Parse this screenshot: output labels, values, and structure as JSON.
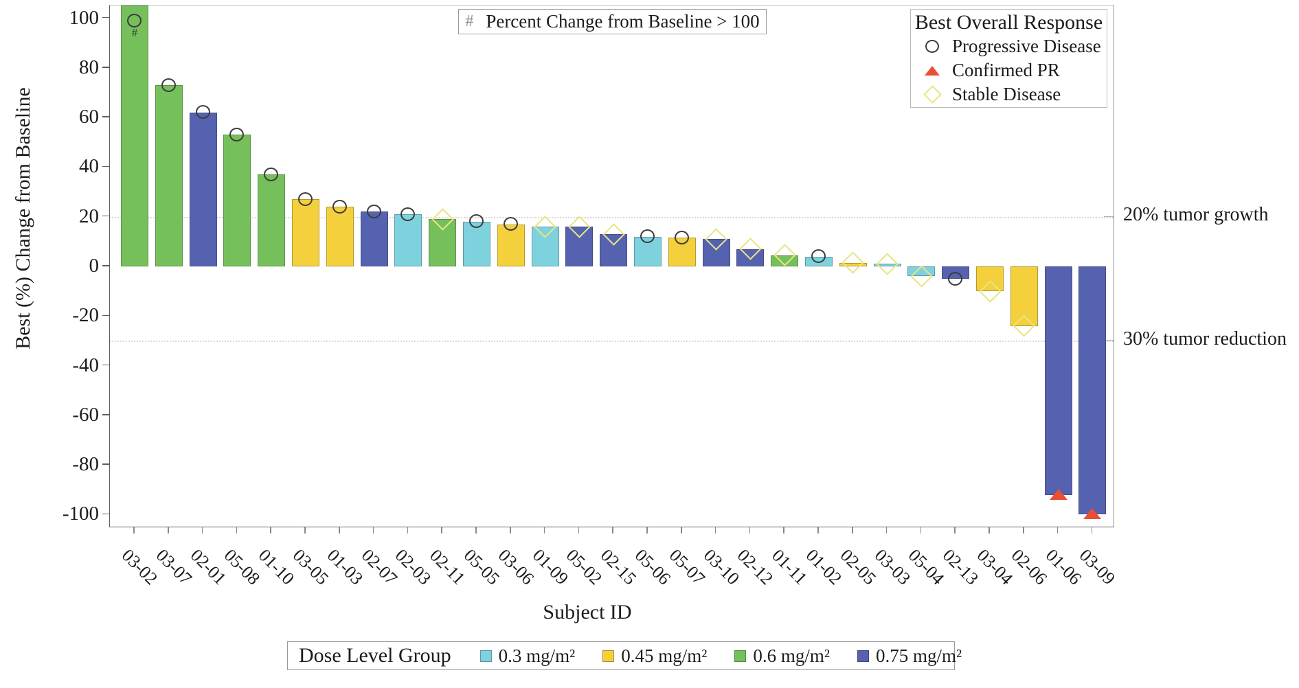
{
  "figure": {
    "note": {
      "symbol": "#",
      "text": "Percent Change from Baseline > 100"
    },
    "response_legend": {
      "title": "Best Overall Response",
      "items": [
        {
          "key": "PD",
          "label": "Progressive Disease",
          "marker": "circle"
        },
        {
          "key": "PR",
          "label": "Confirmed PR",
          "marker": "triangle"
        },
        {
          "key": "SD",
          "label": "Stable Disease",
          "marker": "diamond"
        }
      ]
    },
    "dose_legend": {
      "title": "Dose Level Group",
      "items": [
        {
          "label": "0.3 mg/m²",
          "color": "#7ed2dd"
        },
        {
          "label": "0.45 mg/m²",
          "color": "#f4d03c"
        },
        {
          "label": "0.6 mg/m²",
          "color": "#76c05c"
        },
        {
          "label": "0.75 mg/m²",
          "color": "#5562b0"
        }
      ]
    },
    "annotations": [
      {
        "text": "20% tumor growth",
        "value": 20
      },
      {
        "text": "30% tumor reduction",
        "value": -30
      }
    ]
  },
  "colors": {
    "circle_stroke": "#3d3d3d",
    "diamond_stroke": "#e9e484",
    "triangle_fill": "#e84f33",
    "axis": "#5e5e5e",
    "reference_line": "#e2d4d4"
  },
  "chart_data": {
    "type": "bar",
    "title": "",
    "xlabel": "Subject ID",
    "ylabel": "Best (%) Change from Baseline",
    "ylim": [
      -105,
      105
    ],
    "yticks": [
      100,
      80,
      60,
      40,
      20,
      0,
      -20,
      -40,
      -60,
      -80,
      -100
    ],
    "reference_lines": [
      20,
      -30
    ],
    "legend_position": "top-right",
    "grid": "reference-lines-only",
    "bars": [
      {
        "subject": "03-02",
        "value": 105,
        "clipped": true,
        "display": ">100",
        "marker_value": 99,
        "hash": true,
        "dose": "0.6 mg/m²",
        "response": "PD"
      },
      {
        "subject": "03-07",
        "value": 73,
        "dose": "0.6 mg/m²",
        "response": "PD"
      },
      {
        "subject": "02-01",
        "value": 62,
        "dose": "0.75 mg/m²",
        "response": "PD"
      },
      {
        "subject": "05-08",
        "value": 53,
        "dose": "0.6 mg/m²",
        "response": "PD"
      },
      {
        "subject": "01-10",
        "value": 37,
        "dose": "0.6 mg/m²",
        "response": "PD"
      },
      {
        "subject": "03-05",
        "value": 27,
        "dose": "0.45 mg/m²",
        "response": "PD"
      },
      {
        "subject": "01-03",
        "value": 24,
        "dose": "0.45 mg/m²",
        "response": "PD"
      },
      {
        "subject": "02-07",
        "value": 22,
        "dose": "0.75 mg/m²",
        "response": "PD"
      },
      {
        "subject": "02-03",
        "value": 21,
        "dose": "0.3 mg/m²",
        "response": "PD"
      },
      {
        "subject": "02-11",
        "value": 19,
        "dose": "0.6 mg/m²",
        "response": "SD"
      },
      {
        "subject": "05-05",
        "value": 18,
        "dose": "0.3 mg/m²",
        "response": "PD"
      },
      {
        "subject": "03-06",
        "value": 17,
        "dose": "0.45 mg/m²",
        "response": "PD"
      },
      {
        "subject": "01-09",
        "value": 16,
        "dose": "0.3 mg/m²",
        "response": "SD"
      },
      {
        "subject": "05-02",
        "value": 16,
        "dose": "0.75 mg/m²",
        "response": "SD"
      },
      {
        "subject": "02-15",
        "value": 13,
        "dose": "0.75 mg/m²",
        "response": "SD"
      },
      {
        "subject": "05-06",
        "value": 12,
        "dose": "0.3 mg/m²",
        "response": "PD"
      },
      {
        "subject": "05-07",
        "value": 11.5,
        "dose": "0.45 mg/m²",
        "response": "PD"
      },
      {
        "subject": "03-10",
        "value": 11,
        "dose": "0.75 mg/m²",
        "response": "SD"
      },
      {
        "subject": "02-12",
        "value": 7,
        "dose": "0.75 mg/m²",
        "response": "SD"
      },
      {
        "subject": "01-11",
        "value": 4.5,
        "dose": "0.6 mg/m²",
        "response": "SD"
      },
      {
        "subject": "01-02",
        "value": 4,
        "dose": "0.3 mg/m²",
        "response": "PD"
      },
      {
        "subject": "02-05",
        "value": 1.5,
        "dose": "0.45 mg/m²",
        "response": "SD"
      },
      {
        "subject": "03-03",
        "value": 1,
        "dose": "0.3 mg/m²",
        "response": "SD"
      },
      {
        "subject": "05-04",
        "value": -4,
        "dose": "0.3 mg/m²",
        "response": "SD"
      },
      {
        "subject": "02-13",
        "value": -5,
        "dose": "0.75 mg/m²",
        "response": "PD"
      },
      {
        "subject": "03-04",
        "value": -10,
        "dose": "0.45 mg/m²",
        "response": "SD"
      },
      {
        "subject": "02-06",
        "value": -24,
        "dose": "0.45 mg/m²",
        "response": "SD"
      },
      {
        "subject": "01-06",
        "value": -92,
        "dose": "0.75 mg/m²",
        "response": "PR"
      },
      {
        "subject": "03-09",
        "value": -100,
        "dose": "0.75 mg/m²",
        "response": "PR"
      }
    ]
  }
}
